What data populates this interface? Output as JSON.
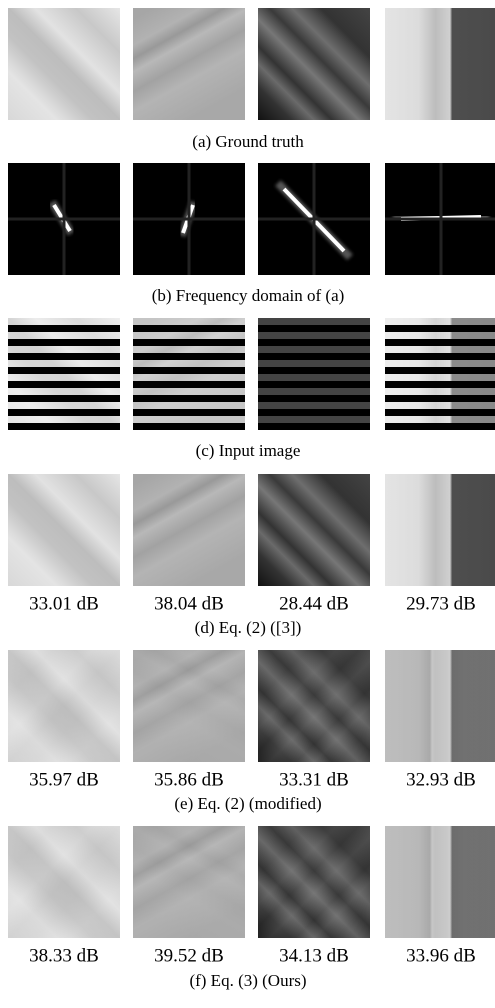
{
  "figure": {
    "rows": [
      {
        "caption": "(a) Ground truth"
      },
      {
        "caption": "(b) Frequency domain of (a)"
      },
      {
        "caption": "(c) Input image"
      },
      {
        "caption": "(d) Eq. (2) ([3])",
        "psnr": [
          "33.01 dB",
          "38.04 dB",
          "28.44 dB",
          "29.73 dB"
        ]
      },
      {
        "caption": "(e) Eq. (2) (modified)",
        "psnr": [
          "35.97 dB",
          "35.86 dB",
          "33.31 dB",
          "32.93 dB"
        ]
      },
      {
        "caption": "(f) Eq. (3) (Ours)",
        "psnr": [
          "38.33 dB",
          "39.52 dB",
          "34.13 dB",
          "33.96 dB"
        ]
      }
    ]
  }
}
